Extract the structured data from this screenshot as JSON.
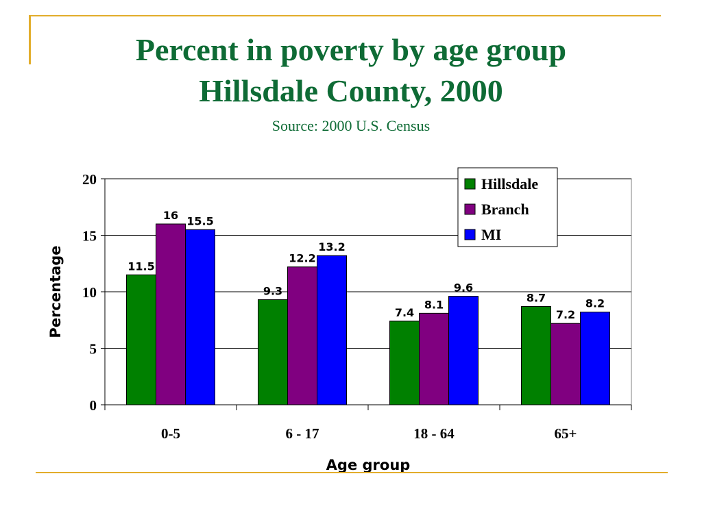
{
  "slide": {
    "title_line1": "Percent in poverty by age group",
    "title_line2": "Hillsdale County, 2000",
    "subtitle": "Source: 2000 U.S. Census"
  },
  "colors": {
    "title": "#0e6b35",
    "accent_line": "#e2ad2b",
    "series": [
      "#008000",
      "#800080",
      "#0000ff"
    ]
  },
  "chart_data": {
    "type": "bar",
    "xlabel": "Age group",
    "ylabel": "Percentage",
    "categories": [
      "0-5",
      "6 - 17",
      "18 - 64",
      "65+"
    ],
    "series": [
      {
        "name": "Hillsdale",
        "values": [
          11.5,
          9.3,
          7.4,
          8.7
        ],
        "color": "#008000"
      },
      {
        "name": "Branch",
        "values": [
          16,
          12.2,
          8.1,
          7.2
        ],
        "color": "#800080"
      },
      {
        "name": "MI",
        "values": [
          15.5,
          13.2,
          9.6,
          8.2
        ],
        "color": "#0000ff"
      }
    ],
    "ylim": [
      0,
      20
    ],
    "yticks": [
      0,
      5,
      10,
      15,
      20
    ],
    "grid": true,
    "legend_position": "top-right",
    "data_labels": true
  }
}
